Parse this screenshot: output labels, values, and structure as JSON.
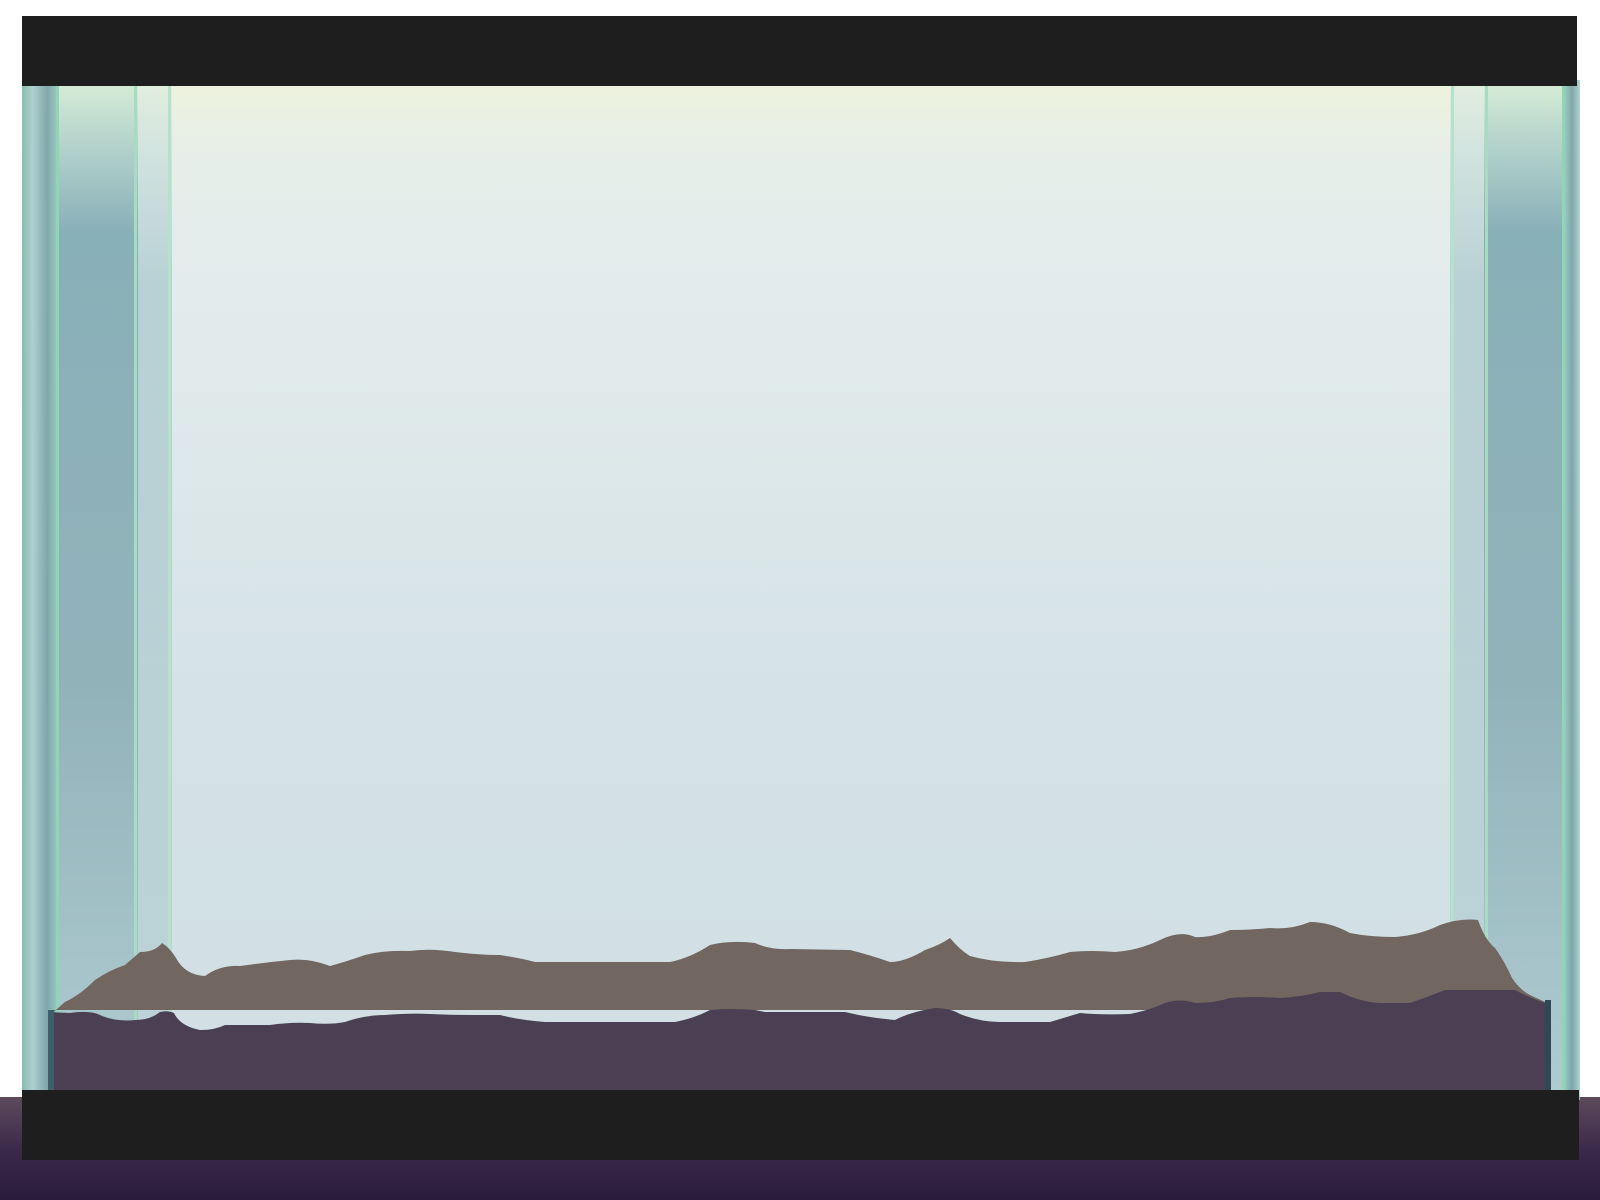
{
  "scene": {
    "name": "aquarium-tank",
    "state": "empty",
    "colors": {
      "water_top": "#eef3dc",
      "water_bottom": "#d1e0e6",
      "glass_edge": "#7fb7a8",
      "glass_dark": "#6e9aa2",
      "lid": "#1e1e1e",
      "base": "#1e1e1e",
      "sand": "#726660",
      "soil": "#4b4053",
      "floor_top": "#5e4a5c",
      "floor_bottom": "#2a1a3c"
    },
    "components": [
      "lid",
      "left-glass-wall",
      "right-glass-wall",
      "water",
      "sand-layer",
      "soil-layer",
      "base",
      "floor"
    ]
  }
}
